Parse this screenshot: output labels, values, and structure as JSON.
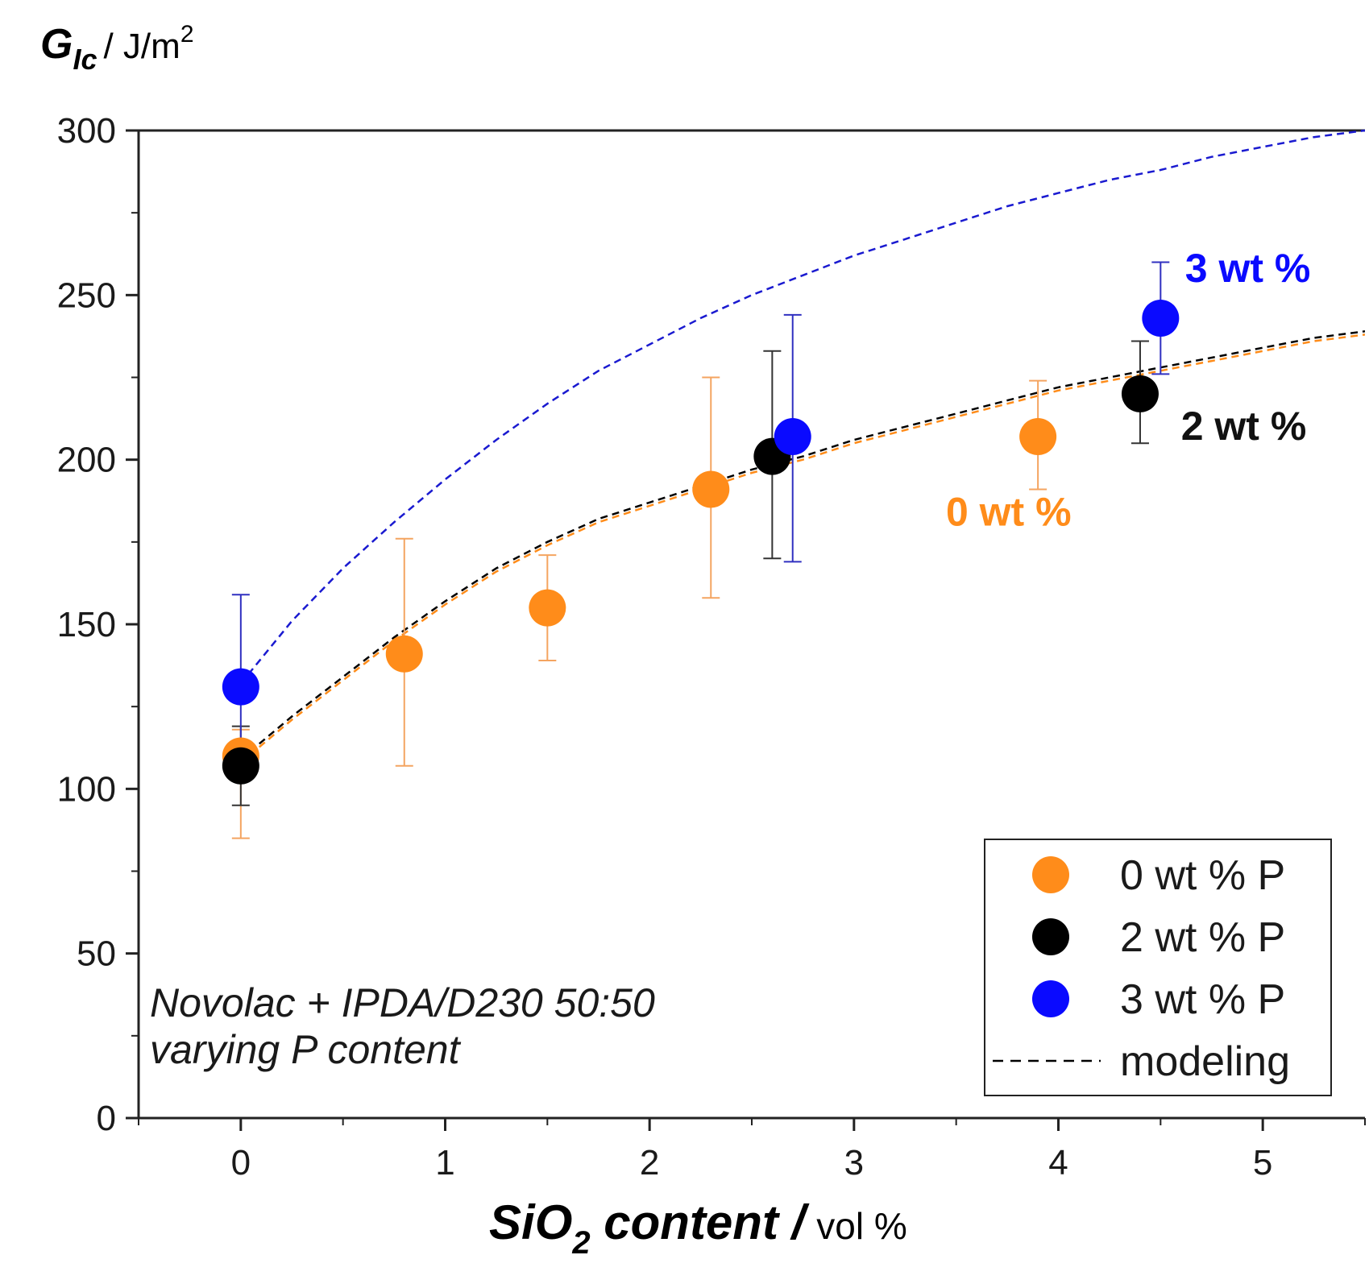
{
  "chart_data": {
    "type": "scatter",
    "title": "",
    "ylabel": {
      "main": "G",
      "subscript": "Ic",
      "unit": "/ J/m",
      "unit_sup": "2"
    },
    "xlabel": {
      "pre": "SiO",
      "subscript": "2",
      "post": " content /",
      "unit": "vol %"
    },
    "xlim": [
      -0.5,
      5.5
    ],
    "ylim": [
      0,
      300
    ],
    "x_ticks": [
      0,
      1,
      2,
      3,
      4,
      5
    ],
    "x_tick_labels": [
      "0",
      "1",
      "2",
      "3",
      "4",
      "5"
    ],
    "y_ticks": [
      0,
      50,
      100,
      150,
      200,
      250,
      300
    ],
    "y_tick_labels": [
      "0",
      "50",
      "100",
      "150",
      "200",
      "250",
      "300"
    ],
    "grid": false,
    "legend_position": "bottom-right",
    "series": [
      {
        "name": "0 wt % P",
        "color": "#ff8c1a",
        "points": [
          {
            "x": 0.0,
            "y": 110,
            "err_low": 85,
            "err_high": 118
          },
          {
            "x": 0.8,
            "y": 141,
            "err_low": 107,
            "err_high": 176
          },
          {
            "x": 1.5,
            "y": 155,
            "err_low": 139,
            "err_high": 171
          },
          {
            "x": 2.3,
            "y": 191,
            "err_low": 158,
            "err_high": 225
          },
          {
            "x": 3.9,
            "y": 207,
            "err_low": 191,
            "err_high": 224
          }
        ]
      },
      {
        "name": "2 wt % P",
        "color": "#000000",
        "points": [
          {
            "x": 0.0,
            "y": 107,
            "err_low": 95,
            "err_high": 119
          },
          {
            "x": 2.6,
            "y": 201,
            "err_low": 170,
            "err_high": 233
          },
          {
            "x": 4.4,
            "y": 220,
            "err_low": 205,
            "err_high": 236
          }
        ]
      },
      {
        "name": "3 wt % P",
        "color": "#0a0aff",
        "points": [
          {
            "x": 0.0,
            "y": 131,
            "err_low": 104,
            "err_high": 159
          },
          {
            "x": 2.7,
            "y": 207,
            "err_low": 169,
            "err_high": 244
          },
          {
            "x": 4.5,
            "y": 243,
            "err_low": 226,
            "err_high": 260
          }
        ]
      }
    ],
    "modeling_curves": [
      {
        "series": "0 wt % P",
        "color": "#ff8c1a",
        "x": [
          0,
          0.25,
          0.5,
          0.75,
          1.0,
          1.25,
          1.5,
          1.75,
          2.0,
          2.25,
          2.5,
          2.75,
          3.0,
          3.25,
          3.5,
          3.75,
          4.0,
          4.25,
          4.5,
          4.75,
          5.0,
          5.25,
          5.5
        ],
        "y": [
          108,
          121,
          133,
          145,
          156,
          166,
          174,
          181,
          186,
          191,
          196,
          200,
          205,
          209,
          213,
          217,
          221,
          224,
          227,
          230,
          233,
          236,
          238
        ]
      },
      {
        "series": "2 wt % P",
        "color": "#000000",
        "x": [
          0,
          0.25,
          0.5,
          0.75,
          1.0,
          1.25,
          1.5,
          1.75,
          2.0,
          2.25,
          2.5,
          2.75,
          3.0,
          3.25,
          3.5,
          3.75,
          4.0,
          4.25,
          4.5,
          4.75,
          5.0,
          5.25,
          5.5
        ],
        "y": [
          109,
          122,
          134,
          146,
          157,
          167,
          175,
          182,
          187,
          192,
          197,
          201,
          206,
          210,
          214,
          218,
          222,
          225,
          228,
          231,
          234,
          237,
          239
        ]
      },
      {
        "series": "3 wt % P",
        "color": "#1a1ad0",
        "x": [
          0,
          0.25,
          0.5,
          0.75,
          1.0,
          1.25,
          1.5,
          1.75,
          2.0,
          2.25,
          2.5,
          2.75,
          3.0,
          3.25,
          3.5,
          3.75,
          4.0,
          4.25,
          4.5,
          4.75,
          5.0,
          5.25,
          5.5
        ],
        "y": [
          132,
          151,
          167,
          181,
          194,
          206,
          217,
          227,
          235,
          243,
          250,
          256,
          262,
          267,
          272,
          277,
          281,
          285,
          288,
          292,
          295,
          298,
          300
        ]
      }
    ],
    "annotations": [
      {
        "text": "3 wt %",
        "color": "#0a0aff",
        "x": 4.62,
        "y": 254
      },
      {
        "text": "2 wt %",
        "color": "#111111",
        "x": 4.6,
        "y": 206
      },
      {
        "text": "0 wt %",
        "color": "#ff8c1a",
        "x": 3.45,
        "y": 180
      }
    ],
    "legend": [
      {
        "label": "0 wt % P",
        "color": "#ff8c1a",
        "kind": "marker"
      },
      {
        "label": "2 wt % P",
        "color": "#000000",
        "kind": "marker"
      },
      {
        "label": "3 wt % P",
        "color": "#0a0aff",
        "kind": "marker"
      },
      {
        "label": "modeling",
        "color": "#000000",
        "kind": "dashed-line"
      }
    ],
    "note_lines": [
      "Novolac + IPDA/D230 50:50",
      "varying P content"
    ]
  }
}
